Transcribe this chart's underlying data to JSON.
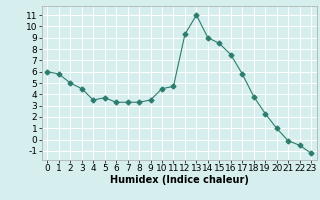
{
  "x": [
    0,
    1,
    2,
    3,
    4,
    5,
    6,
    7,
    8,
    9,
    10,
    11,
    12,
    13,
    14,
    15,
    16,
    17,
    18,
    19,
    20,
    21,
    22,
    23
  ],
  "y": [
    6.0,
    5.8,
    5.0,
    4.5,
    3.5,
    3.7,
    3.3,
    3.3,
    3.3,
    3.5,
    4.5,
    4.7,
    9.3,
    11.0,
    9.0,
    8.5,
    7.5,
    5.8,
    3.8,
    2.3,
    1.0,
    -0.1,
    -0.5,
    -1.2
  ],
  "xlabel": "Humidex (Indice chaleur)",
  "line_color": "#2d7d6e",
  "marker": "D",
  "marker_size": 2.5,
  "bg_color": "#d6eeee",
  "grid_color": "#ffffff",
  "xlim": [
    -0.5,
    23.5
  ],
  "ylim": [
    -1.8,
    11.8
  ],
  "xticks": [
    0,
    1,
    2,
    3,
    4,
    5,
    6,
    7,
    8,
    9,
    10,
    11,
    12,
    13,
    14,
    15,
    16,
    17,
    18,
    19,
    20,
    21,
    22,
    23
  ],
  "yticks": [
    -1,
    0,
    1,
    2,
    3,
    4,
    5,
    6,
    7,
    8,
    9,
    10,
    11
  ],
  "xlabel_fontsize": 7,
  "tick_fontsize": 6.5
}
